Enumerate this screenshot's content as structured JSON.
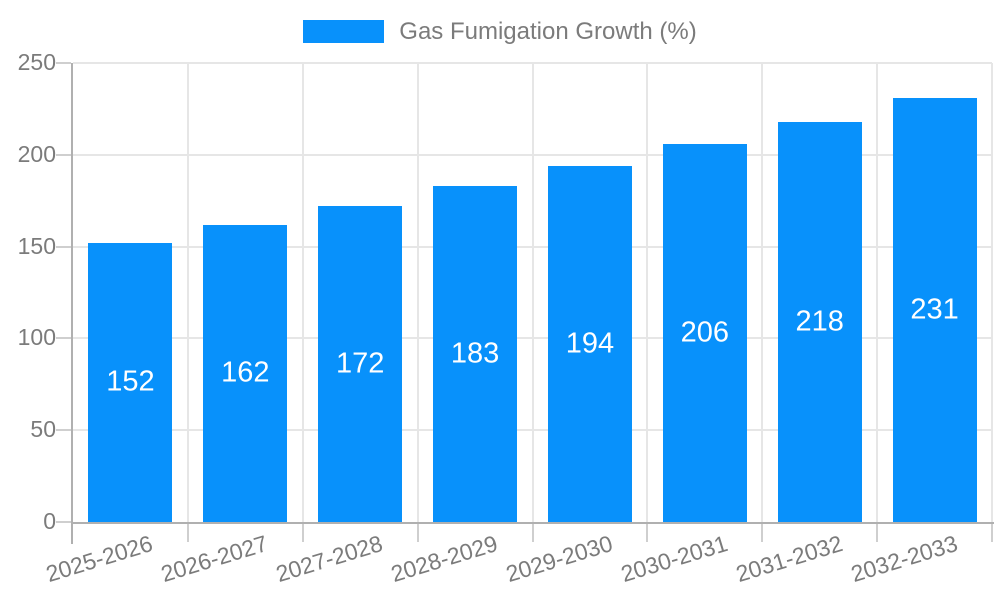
{
  "legend": {
    "label": "Gas Fumigation Growth (%)"
  },
  "colors": {
    "bar": "#0891fb",
    "grid": "#e6e6e6",
    "axis": "#b0b0b0",
    "tick": "#cfcfcf",
    "text": "#7b7b7b",
    "value_label": "#ffffff",
    "background": "#ffffff"
  },
  "chart_data": {
    "type": "bar",
    "title": "",
    "legend_entries": [
      "Gas Fumigation Growth (%)"
    ],
    "legend_position": "top-center",
    "categories": [
      "2025-2026",
      "2026-2027",
      "2027-2028",
      "2028-2029",
      "2029-2030",
      "2030-2031",
      "2031-2032",
      "2032-2033"
    ],
    "values": [
      152,
      162,
      172,
      183,
      194,
      206,
      218,
      231
    ],
    "xlabel": "",
    "ylabel": "",
    "ylim": [
      0,
      250
    ],
    "yticks": [
      0,
      50,
      100,
      150,
      200,
      250
    ],
    "grid": true,
    "value_labels_shown": true,
    "x_tick_rotation_deg": -17
  }
}
